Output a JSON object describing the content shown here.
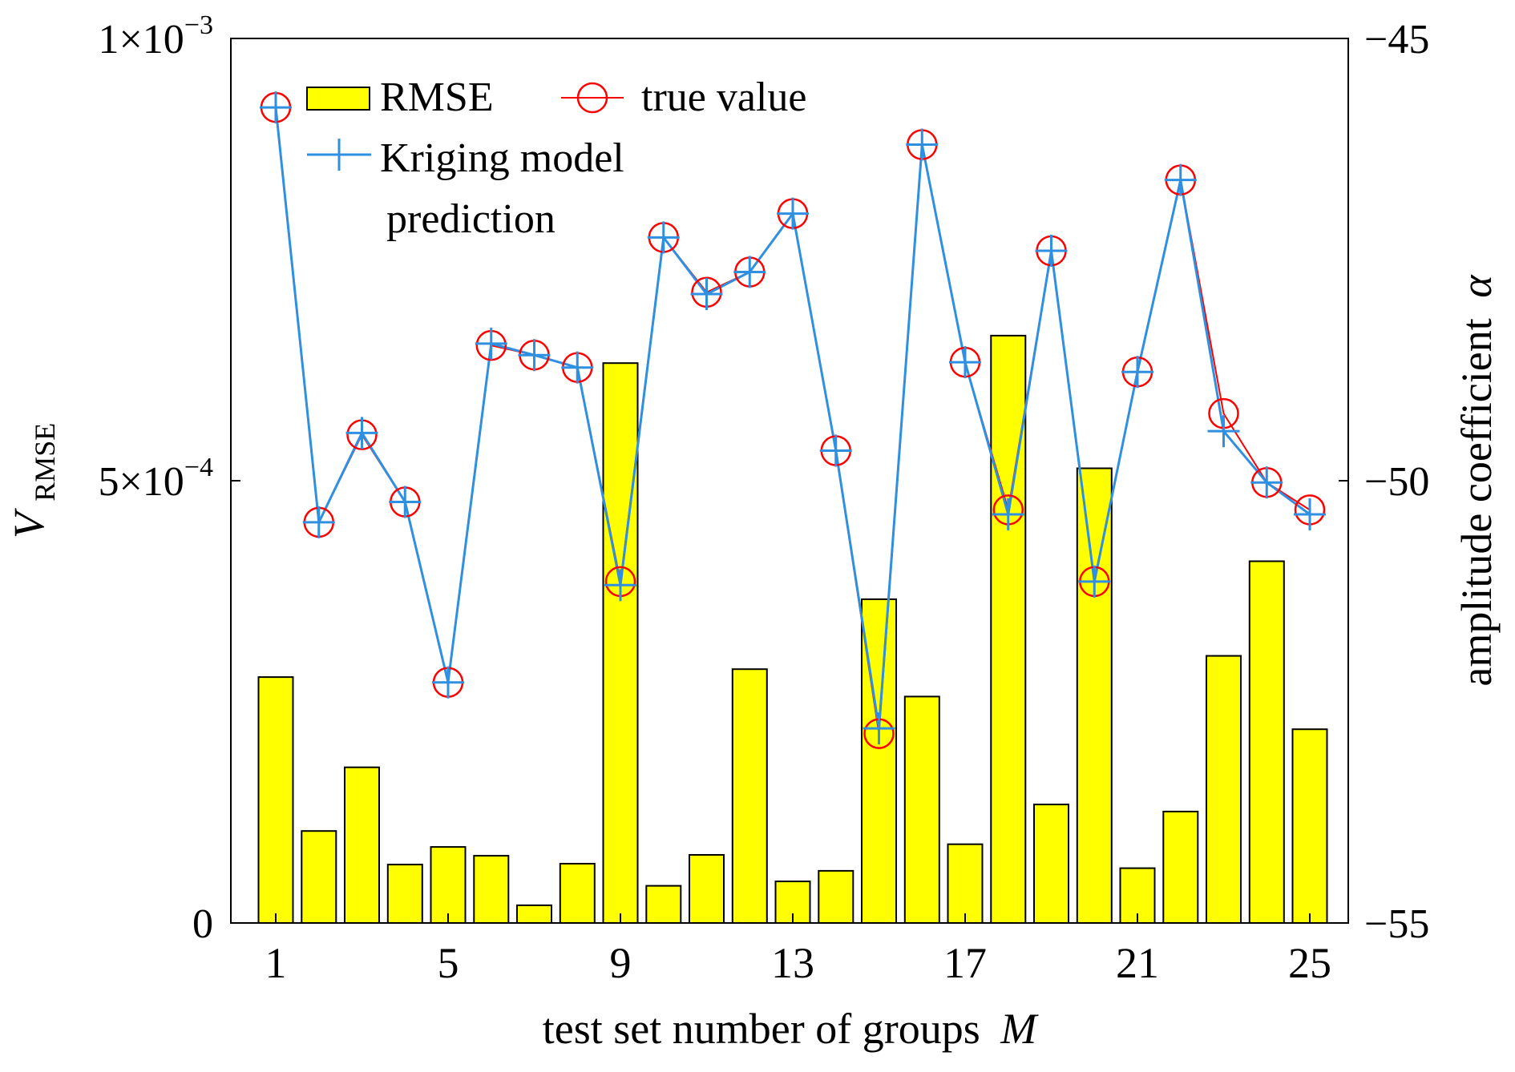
{
  "chart_data": {
    "type": "bar",
    "xlabel": "test set number of groups",
    "xlabel_italic": "M",
    "ylabel_left": {
      "symbol": "V",
      "subscript": "RMSE"
    },
    "ylabel_right": {
      "text": "amplitude coefficient",
      "symbol": "α"
    },
    "x": [
      1,
      2,
      3,
      4,
      5,
      6,
      7,
      8,
      9,
      10,
      11,
      12,
      13,
      14,
      15,
      16,
      17,
      18,
      19,
      20,
      21,
      22,
      23,
      24,
      25
    ],
    "x_ticks": [
      "1",
      "5",
      "9",
      "13",
      "17",
      "21",
      "25"
    ],
    "left_axis": {
      "ylim": [
        0,
        0.001
      ],
      "ticks": [
        {
          "value": 0,
          "mantissa": "0",
          "exponent": ""
        },
        {
          "value": 0.0005,
          "mantissa": "5×10",
          "exponent": "−4"
        },
        {
          "value": 0.001,
          "mantissa": "1×10",
          "exponent": "−3"
        }
      ]
    },
    "right_axis": {
      "ylim": [
        -55,
        -45
      ],
      "ticks": [
        "−55",
        "−50",
        "−45"
      ]
    },
    "legend": {
      "position": "top-left"
    },
    "series": [
      {
        "name": "RMSE",
        "kind": "bar",
        "axis": "left",
        "color": "#ffff00",
        "values": [
          0.000278,
          0.000104,
          0.000176,
          6.6e-05,
          8.6e-05,
          7.6e-05,
          2e-05,
          6.7e-05,
          0.000633,
          4.2e-05,
          7.7e-05,
          0.000287,
          4.7e-05,
          5.9e-05,
          0.000366,
          0.000256,
          8.9e-05,
          0.000664,
          0.000134,
          0.000514,
          6.2e-05,
          0.000126,
          0.000302,
          0.000409,
          0.000219
        ]
      },
      {
        "name": "true value",
        "kind": "circle",
        "axis": "right",
        "color": "#ff0000",
        "values": [
          -45.78,
          -50.47,
          -49.48,
          -50.24,
          -52.28,
          -48.47,
          -48.58,
          -48.72,
          -51.14,
          -47.25,
          -47.87,
          -47.64,
          -46.98,
          -49.66,
          -52.86,
          -46.2,
          -48.66,
          -50.33,
          -47.4,
          -51.14,
          -48.77,
          -46.6,
          -49.24,
          -50.02,
          -50.33
        ]
      },
      {
        "name": "Kriging model",
        "name_line2": "prediction",
        "kind": "line",
        "axis": "right",
        "color": "#2f8fe0",
        "values": [
          -45.78,
          -50.47,
          -49.46,
          -50.24,
          -52.28,
          -48.45,
          -48.58,
          -48.72,
          -51.18,
          -47.25,
          -47.89,
          -47.64,
          -46.98,
          -49.66,
          -52.8,
          -46.2,
          -48.66,
          -50.38,
          -47.4,
          -51.14,
          -48.77,
          -46.6,
          -49.44,
          -50.02,
          -50.38
        ]
      }
    ]
  }
}
